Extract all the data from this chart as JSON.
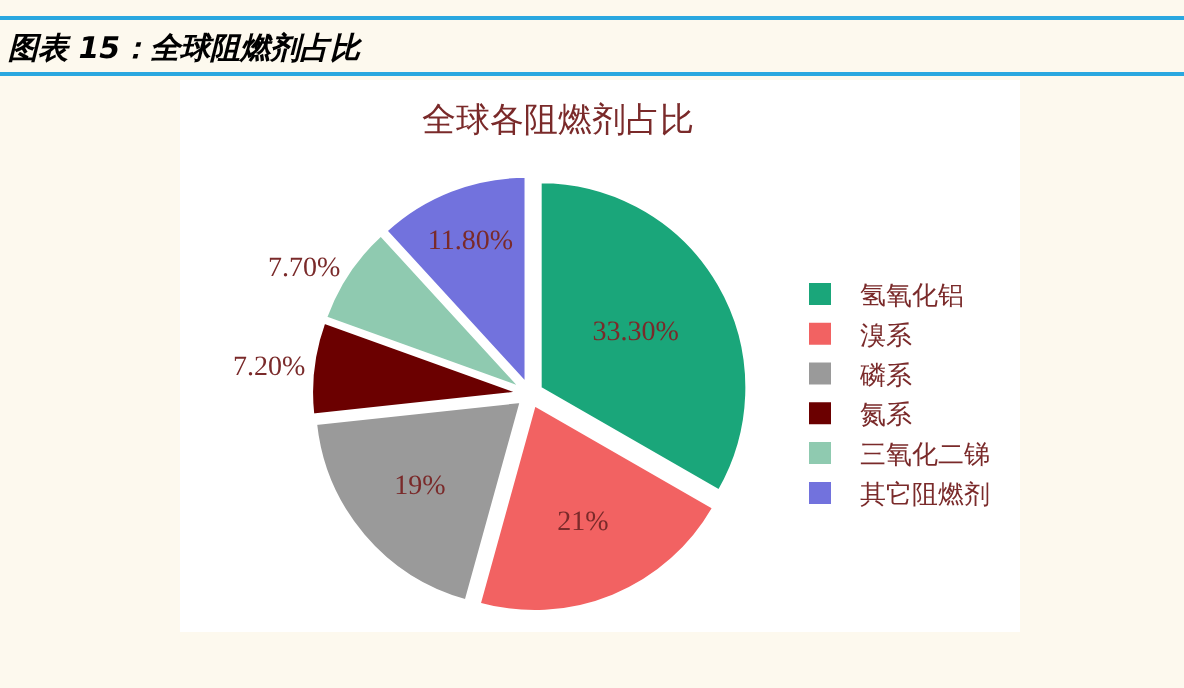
{
  "chart_data": {
    "type": "pie",
    "title": "图表 15：全球阻燃剂占比",
    "subtitle": "全球各阻燃剂占比",
    "categories": [
      "氢氧化铝",
      "溴系",
      "磷系",
      "氮系",
      "三氧化二锑",
      "其它阻燃剂"
    ],
    "values": [
      33.3,
      21,
      19,
      7.2,
      7.7,
      11.8
    ],
    "value_labels": [
      "33.30%",
      "21%",
      "19%",
      "7.20%",
      "7.70%",
      "11.80%"
    ],
    "colors": [
      "#1aa67a",
      "#f26262",
      "#9a9a9a",
      "#6b0000",
      "#8fcab0",
      "#7272dd"
    ],
    "legend": "right"
  }
}
